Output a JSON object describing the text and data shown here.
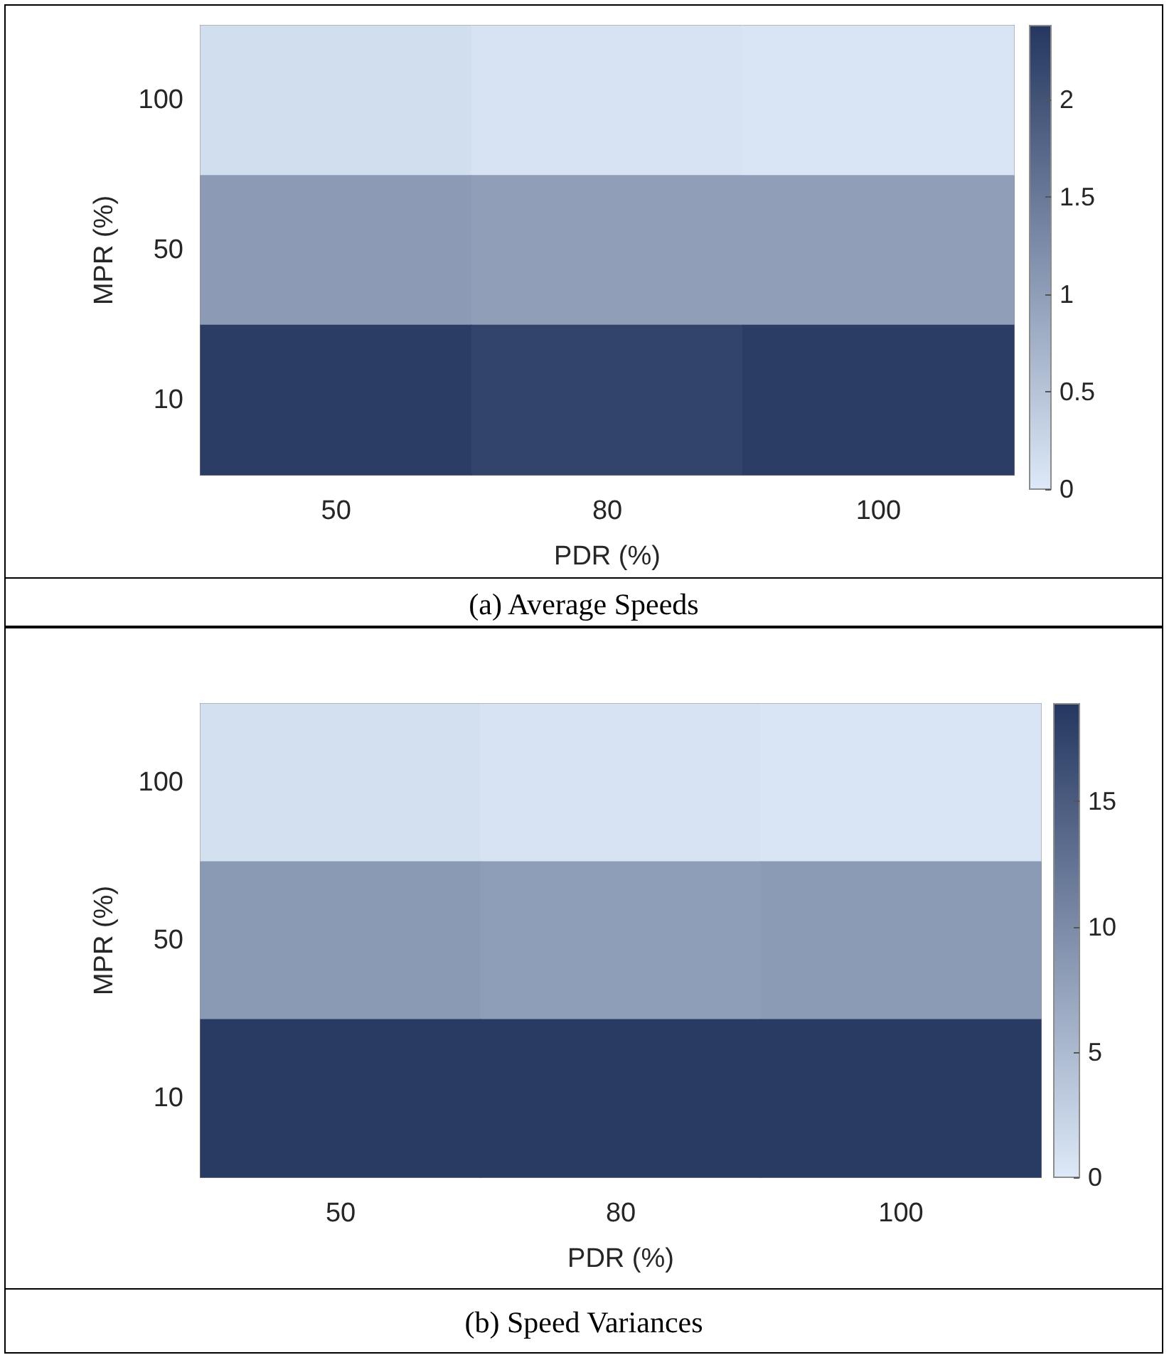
{
  "chart_data": [
    {
      "type": "heatmap",
      "title": "(a)  Average Speeds",
      "xlabel": "PDR (%)",
      "ylabel": "MPR (%)",
      "categories": [
        "50",
        "80",
        "100"
      ],
      "y_categories": [
        "100",
        "50",
        "10"
      ],
      "cells": [
        [
          0.15,
          0.08,
          0.05
        ],
        [
          1.05,
          1.0,
          1.0
        ],
        [
          2.3,
          2.2,
          2.3
        ]
      ],
      "clim": [
        0,
        2.38
      ],
      "cticks": [
        0,
        0.5,
        1,
        1.5,
        2
      ]
    },
    {
      "type": "heatmap",
      "title": "(b)  Speed Variances",
      "xlabel": "PDR (%)",
      "ylabel": "MPR (%)",
      "categories": [
        "50",
        "80",
        "100"
      ],
      "y_categories": [
        "100",
        "50",
        "10"
      ],
      "cells": [
        [
          1.0,
          0.6,
          0.4
        ],
        [
          8.5,
          8.0,
          8.3
        ],
        [
          18.5,
          18.5,
          18.5
        ]
      ],
      "clim": [
        0,
        18.9
      ],
      "cticks": [
        0,
        5,
        10,
        15
      ]
    }
  ]
}
